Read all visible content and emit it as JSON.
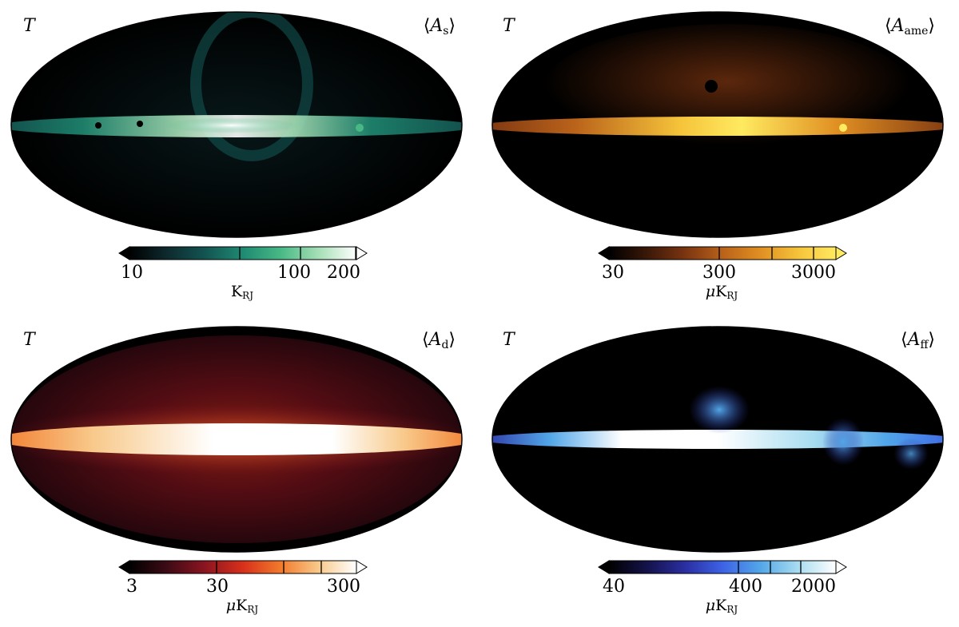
{
  "figure": {
    "panels": [
      {
        "id": "synchrotron",
        "stokes_label": "T",
        "component_symbol": "A",
        "component_subscript": "s",
        "colormap": [
          "#000000",
          "#0e2a2e",
          "#135452",
          "#1f8a72",
          "#48b985",
          "#a6dfb6",
          "#ffffff"
        ],
        "colorbar_ticks": [
          "10",
          "100",
          "200"
        ],
        "unit_prefix": "",
        "unit_main": "K",
        "unit_sub": "RJ"
      },
      {
        "id": "ame",
        "stokes_label": "T",
        "component_symbol": "A",
        "component_subscript": "ame",
        "colormap": [
          "#000000",
          "#3a1808",
          "#7a3410",
          "#b9621a",
          "#e08f22",
          "#f5c33a",
          "#ffea60"
        ],
        "colorbar_ticks": [
          "30",
          "300",
          "3000"
        ],
        "unit_prefix": "μ",
        "unit_main": "K",
        "unit_sub": "RJ"
      },
      {
        "id": "dust",
        "stokes_label": "T",
        "component_symbol": "A",
        "component_subscript": "d",
        "colormap": [
          "#000000",
          "#3e0b15",
          "#8b1520",
          "#d8301b",
          "#f27a2c",
          "#f8c98a",
          "#ffffff"
        ],
        "colorbar_ticks": [
          "3",
          "30",
          "300"
        ],
        "unit_prefix": "μ",
        "unit_main": "K",
        "unit_sub": "RJ"
      },
      {
        "id": "free-free",
        "stokes_label": "T",
        "component_symbol": "A",
        "component_subscript": "ff",
        "colormap": [
          "#000000",
          "#14124a",
          "#2a2ea0",
          "#3d62e6",
          "#52a6e8",
          "#a8dcf0",
          "#ffffff"
        ],
        "colorbar_ticks": [
          "40",
          "400",
          "2000"
        ],
        "unit_prefix": "μ",
        "unit_main": "K",
        "unit_sub": "RJ"
      }
    ]
  }
}
